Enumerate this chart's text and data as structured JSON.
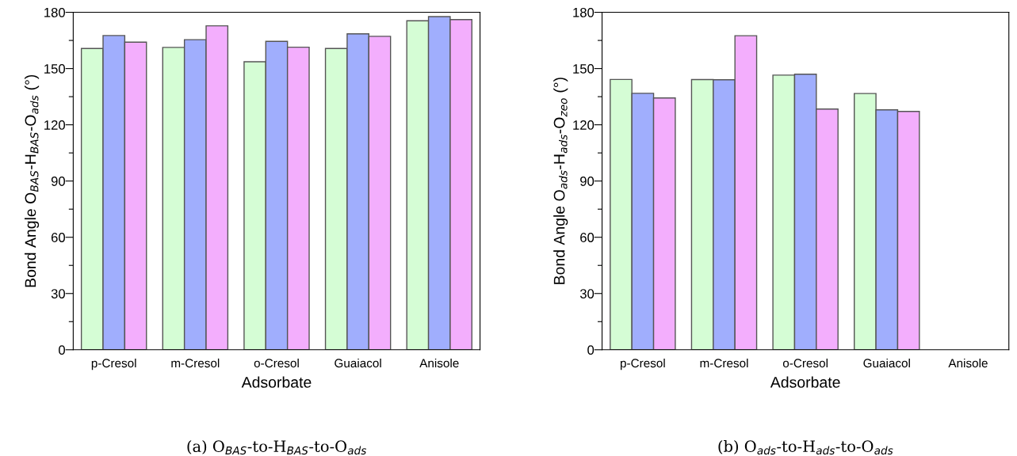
{
  "chart_data": [
    {
      "type": "bar",
      "xlabel": "Adsorbate",
      "ylabel": "Bond Angle O$_{BAS}$-H$_{BAS}$-O$_{ads}$ (°)",
      "categories": [
        "p-Cresol",
        "m-Cresol",
        "o-Cresol",
        "Guaiacol",
        "Anisole"
      ],
      "series": [
        {
          "color": "#d5fdd5",
          "values": [
            160.7,
            161.3,
            153.6,
            160.7,
            175.5
          ]
        },
        {
          "color": "#a0aefd",
          "values": [
            167.6,
            165.4,
            164.5,
            168.5,
            177.7
          ]
        },
        {
          "color": "#f3aefd",
          "values": [
            164.1,
            172.8,
            161.4,
            167.2,
            176.1
          ]
        }
      ],
      "ylim": [
        0,
        180
      ],
      "yticks": [
        0,
        {
          "value": 15,
          "label": null
        },
        30,
        {
          "value": 45,
          "label": null
        },
        60,
        {
          "value": 75,
          "label": null
        },
        90,
        {
          "value": 105,
          "label": null
        },
        120,
        {
          "value": 135,
          "label": null
        },
        150,
        {
          "value": 165,
          "label": null
        },
        180
      ],
      "annotations": [
        "(a) O$_{BAS}$-to-H$_{BAS}$-to-O$_{ads}$"
      ]
    },
    {
      "type": "bar",
      "xlabel": "Adsorbate",
      "ylabel": "Bond Angle O$_{ads}$-H$_{ads}$-O$_{zeo}$ (°)",
      "categories": [
        "p-Cresol",
        "m-Cresol",
        "o-Cresol",
        "Guaiacol",
        "Anisole"
      ],
      "series": [
        {
          "color": "#d5fdd5",
          "values": [
            144.2,
            144.1,
            146.5,
            136.7,
            null
          ]
        },
        {
          "color": "#a0aefd",
          "values": [
            136.8,
            144.0,
            147.0,
            128.0,
            null
          ]
        },
        {
          "color": "#f3aefd",
          "values": [
            134.3,
            167.5,
            128.4,
            127.1,
            null
          ]
        }
      ],
      "ylim": [
        0,
        180
      ],
      "yticks": [
        0,
        {
          "value": 15,
          "label": null
        },
        30,
        {
          "value": 45,
          "label": null
        },
        60,
        {
          "value": 75,
          "label": null
        },
        90,
        {
          "value": 105,
          "label": null
        },
        120,
        {
          "value": 135,
          "label": null
        },
        150,
        {
          "value": 165,
          "label": null
        },
        180
      ],
      "annotations": [
        "(b) O$_{ads}$-to-H$_{ads}$-to-O$_{ads}$"
      ]
    }
  ]
}
